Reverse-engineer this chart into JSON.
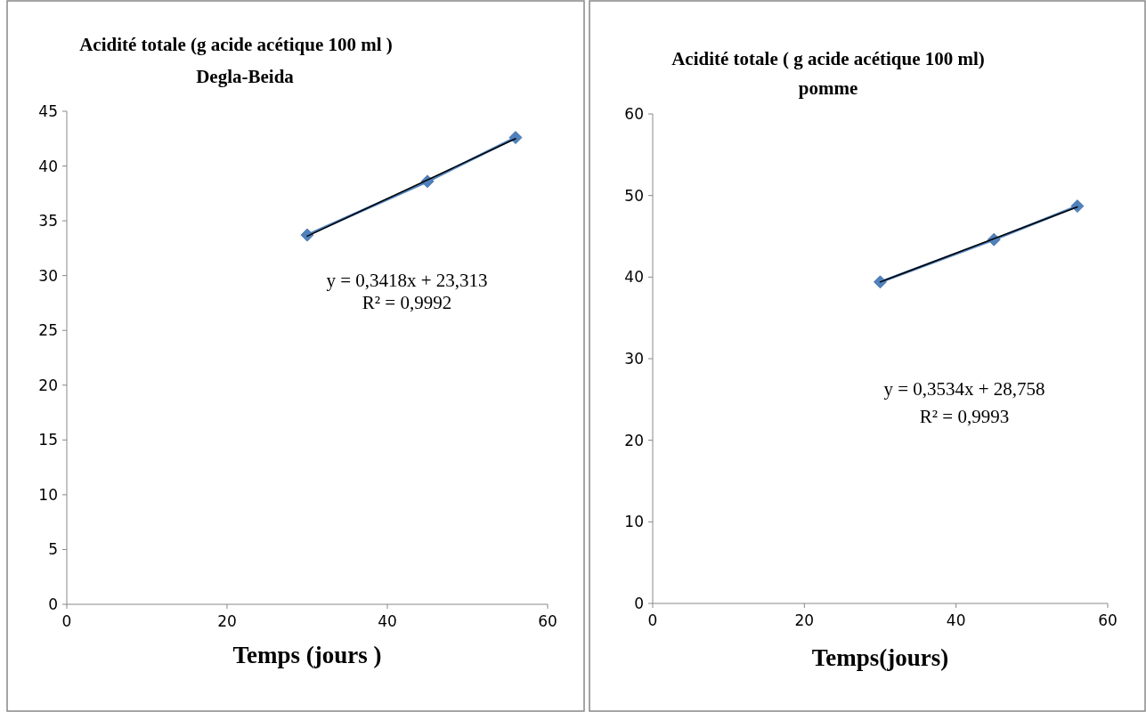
{
  "chart_data": [
    {
      "type": "line",
      "title": "Acidité totale (g acide acétique 100 ml )",
      "subtitle": "Degla-Beida",
      "xlabel": "Temps (jours )",
      "xlim": [
        0,
        60
      ],
      "xticks": [
        0,
        20,
        40,
        60
      ],
      "ylim": [
        0,
        45
      ],
      "yticks": [
        0,
        5,
        10,
        15,
        20,
        25,
        30,
        35,
        40,
        45
      ],
      "grid": false,
      "series": [
        {
          "color": "#4f81bd",
          "marker": "diamond",
          "x": [
            30,
            45,
            56
          ],
          "values": [
            33.7,
            38.6,
            42.6
          ]
        },
        {
          "color": "#000000",
          "marker": "none",
          "x": [
            30,
            56
          ],
          "values": [
            33.6,
            42.5
          ]
        }
      ],
      "annotations": [
        "y = 0,3418x + 23,313",
        "R² = 0,9992"
      ]
    },
    {
      "type": "line",
      "title": "Acidité totale ( g acide acétique 100 ml)",
      "subtitle": "pomme",
      "xlabel": "Temps(jours)",
      "xlim": [
        0,
        60
      ],
      "xticks": [
        0,
        20,
        40,
        60
      ],
      "ylim": [
        0,
        60
      ],
      "yticks": [
        0,
        10,
        20,
        30,
        40,
        50,
        60
      ],
      "grid": false,
      "series": [
        {
          "color": "#4f81bd",
          "marker": "diamond",
          "x": [
            30,
            45,
            56
          ],
          "values": [
            39.4,
            44.6,
            48.7
          ]
        },
        {
          "color": "#000000",
          "marker": "none",
          "x": [
            30,
            56
          ],
          "values": [
            39.4,
            48.6
          ]
        }
      ],
      "annotations": [
        "y = 0,3534x + 28,758",
        "R² = 0,9993"
      ]
    }
  ]
}
